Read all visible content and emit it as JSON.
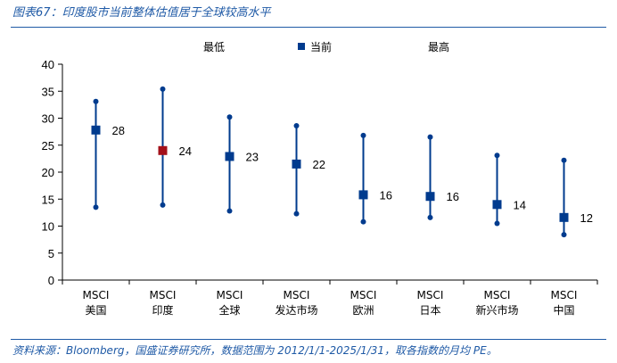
{
  "figure": {
    "title": "图表67：印度股市当前整体估值居于全球较高水平",
    "source": "资料来源：Bloomberg，国盛证券研究所，数据范围为 2012/1/1-2025/1/31，取各指数的月均 PE。"
  },
  "chart_data": {
    "type": "range",
    "categories": [
      [
        "MSCI",
        "美国"
      ],
      [
        "MSCI",
        "印度"
      ],
      [
        "MSCI",
        "全球"
      ],
      [
        "MSCI",
        "发达市场"
      ],
      [
        "MSCI",
        "欧洲"
      ],
      [
        "MSCI",
        "日本"
      ],
      [
        "MSCI",
        "新兴市场"
      ],
      [
        "MSCI",
        "中国"
      ]
    ],
    "series": [
      {
        "name": "最低",
        "values": [
          13.5,
          13.9,
          12.8,
          12.3,
          10.8,
          11.6,
          10.5,
          8.4
        ]
      },
      {
        "name": "当前",
        "values": [
          27.8,
          24.0,
          22.9,
          21.5,
          15.8,
          15.5,
          14.0,
          11.6
        ]
      },
      {
        "name": "最高",
        "values": [
          33.1,
          35.4,
          30.2,
          28.6,
          26.8,
          26.5,
          23.1,
          22.2
        ]
      }
    ],
    "data_labels": [
      "28",
      "24",
      "23",
      "22",
      "16",
      "16",
      "14",
      "12"
    ],
    "highlight_index": 1,
    "ylim": [
      0,
      40
    ],
    "yticks": [
      "0",
      "5",
      "10",
      "15",
      "20",
      "25",
      "30",
      "35",
      "40"
    ],
    "legend_position": "top",
    "colors": {
      "main": "#003b8e",
      "highlight": "#a3101a",
      "text": "#000000",
      "axis": "#000000"
    }
  }
}
